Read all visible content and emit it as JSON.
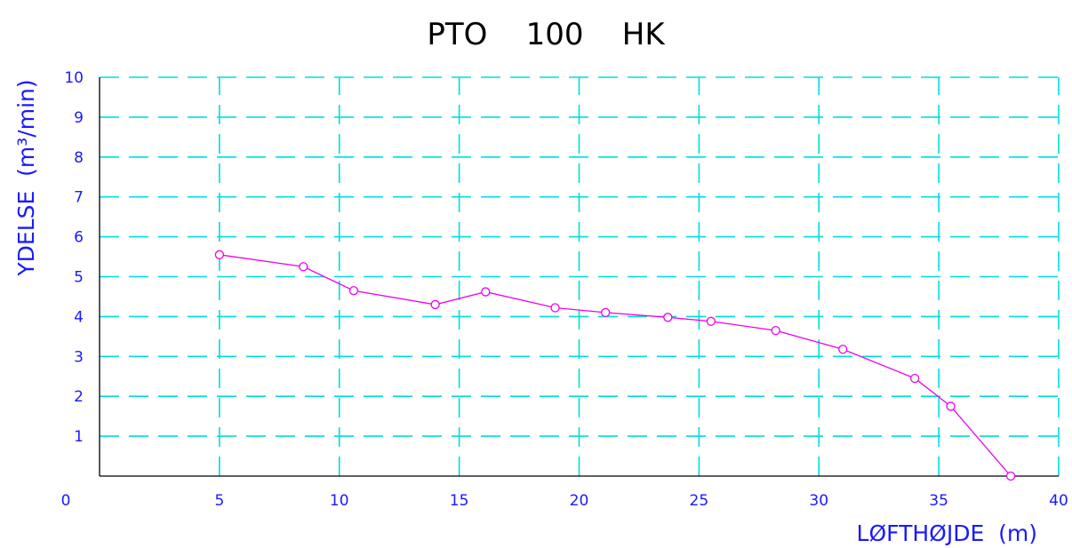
{
  "colors": {
    "grid": "#00dddd",
    "line": "#ee00ee",
    "text": "#1a1aff",
    "axis": "#000000"
  },
  "chart_data": {
    "type": "line",
    "title": "PTO    100    HK",
    "xlabel": "LØFTHØJDE  (m)",
    "ylabel": "YDELSE  (m³/min)",
    "xlim": [
      0,
      40
    ],
    "ylim": [
      0,
      10
    ],
    "x_ticks": [
      "0",
      "5",
      "10",
      "15",
      "20",
      "25",
      "30",
      "35",
      "40"
    ],
    "y_ticks": [
      "1",
      "2",
      "3",
      "4",
      "5",
      "6",
      "7",
      "8",
      "9",
      "10"
    ],
    "grid": true,
    "grid_style": "dashed",
    "markers": "open-circle",
    "series": [
      {
        "x": [
          5,
          8.5,
          10.6,
          14,
          16.1,
          19,
          21.1,
          23.7,
          25.5,
          28.2,
          31,
          34,
          35.5,
          38
        ],
        "y": [
          5.55,
          5.25,
          4.65,
          4.3,
          4.62,
          4.22,
          4.1,
          3.98,
          3.88,
          3.65,
          3.18,
          2.45,
          1.75,
          0
        ]
      }
    ]
  }
}
